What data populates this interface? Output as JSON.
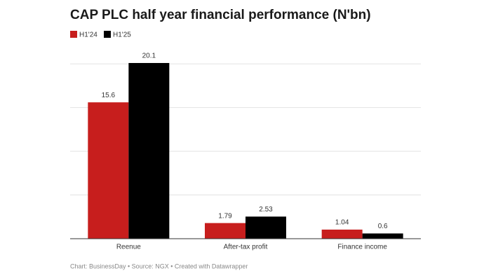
{
  "chart_data": {
    "type": "bar",
    "title": "CAP PLC half year financial performance (N'bn)",
    "footer": "Chart: BusinessDay • Source: NGX • Created with Datawrapper",
    "categories": [
      "Reenue",
      "After-tax profit",
      "Finance income"
    ],
    "series": [
      {
        "name": "H1'24",
        "color": "#c71e1d",
        "values": [
          15.6,
          1.79,
          1.04
        ]
      },
      {
        "name": "H1'25",
        "color": "#000000",
        "values": [
          20.1,
          2.53,
          0.6
        ]
      }
    ],
    "ylim": [
      0,
      20.1
    ],
    "yticks": [
      0,
      5,
      10,
      15,
      20
    ],
    "grid": true
  }
}
